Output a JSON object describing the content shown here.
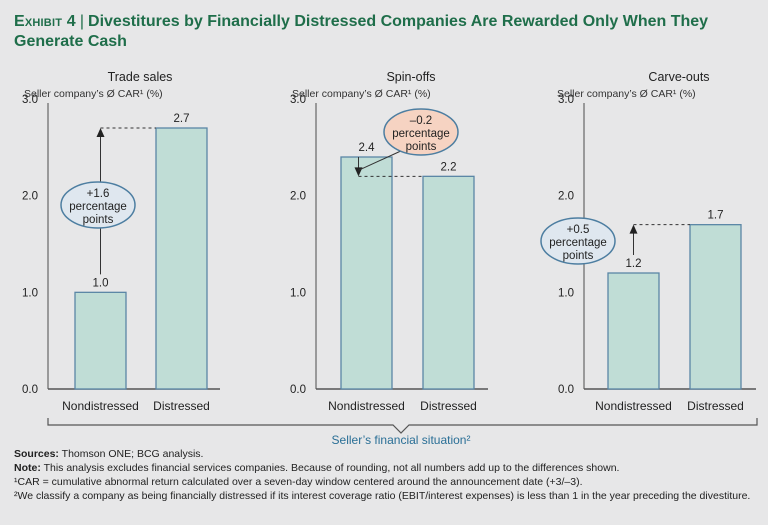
{
  "title": {
    "exhibit": "Exhibit 4",
    "separator": "|",
    "text": "Divestitures by Financially Distressed Companies Are Rewarded Only When They Generate Cash"
  },
  "chart_data": [
    {
      "type": "bar",
      "title": "Trade sales",
      "ylabel": "Seller company’s Ø CAR¹ (%)",
      "categories": [
        "Nondistressed",
        "Distressed"
      ],
      "values": [
        1.0,
        2.7
      ],
      "value_labels": [
        "1.0",
        "2.7"
      ],
      "ylim": [
        0,
        3
      ],
      "yticks": [
        "0.0",
        "1.0",
        "2.0",
        "3.0"
      ],
      "annotation": {
        "line1": "+1.6",
        "line2": "percentage",
        "line3": "points",
        "direction": "up",
        "color": "#dfe7ef"
      }
    },
    {
      "type": "bar",
      "title": "Spin-offs",
      "ylabel": "Seller company’s Ø CAR¹ (%)",
      "categories": [
        "Nondistressed",
        "Distressed"
      ],
      "values": [
        2.4,
        2.2
      ],
      "value_labels": [
        "2.4",
        "2.2"
      ],
      "ylim": [
        0,
        3
      ],
      "yticks": [
        "0.0",
        "1.0",
        "2.0",
        "3.0"
      ],
      "annotation": {
        "line1": "–0.2",
        "line2": "percentage",
        "line3": "points",
        "direction": "down",
        "color": "#f6d3c2"
      }
    },
    {
      "type": "bar",
      "title": "Carve-outs",
      "ylabel": "Seller company’s Ø CAR¹ (%)",
      "categories": [
        "Nondistressed",
        "Distressed"
      ],
      "values": [
        1.2,
        1.7
      ],
      "value_labels": [
        "1.2",
        "1.7"
      ],
      "ylim": [
        0,
        3
      ],
      "yticks": [
        "0.0",
        "1.0",
        "2.0",
        "3.0"
      ],
      "annotation": {
        "line1": "+0.5",
        "line2": "percentage",
        "line3": "points",
        "direction": "up",
        "color": "#dfe7ef"
      }
    }
  ],
  "xlabel_shared": "Seller’s financial situation²",
  "colors": {
    "bar_fill": "#c0ddd6",
    "bar_stroke": "#5a86a6",
    "ellipse_stroke": "#4d7ea1",
    "xlabel": "#2a6f96",
    "title": "#1f6e4a"
  },
  "footnotes": {
    "sources_label": "Sources:",
    "sources_text": " Thomson ONE; BCG analysis.",
    "note_label": "Note:",
    "note_text": " This analysis excludes financial services companies. Because of rounding, not all numbers add up to the differences shown.",
    "fn1": "¹CAR = cumulative abnormal return calculated over a seven-day window centered around the announcement date (+3/–3).",
    "fn2": "²We classify a company as being financially distressed if its interest coverage ratio (EBIT/interest expenses) is less than 1 in the year preceding the divestiture."
  }
}
